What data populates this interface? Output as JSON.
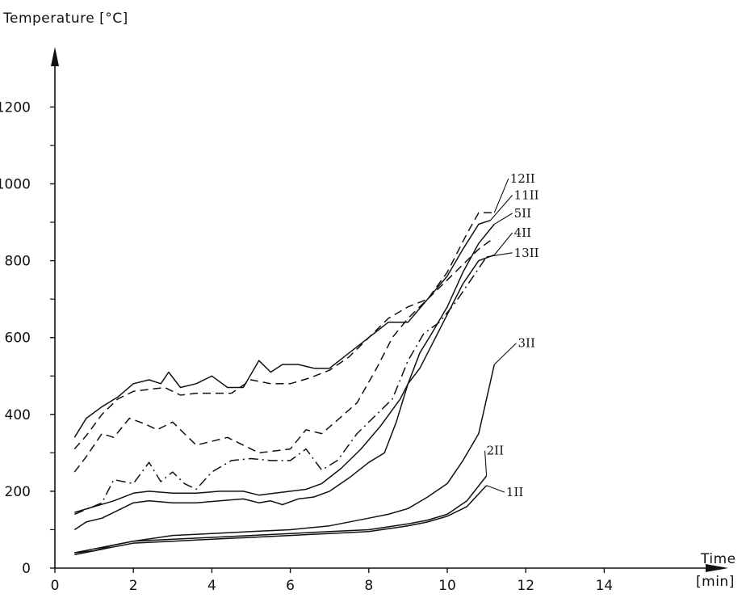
{
  "chart_data": {
    "type": "line",
    "ylabel": "Temperature [°C]",
    "xlabel": "Time",
    "xunit": "[min]",
    "xlim": [
      0,
      16
    ],
    "ylim": [
      0,
      1300
    ],
    "xticks": [
      0,
      2,
      4,
      6,
      8,
      10,
      12,
      14
    ],
    "yticks": [
      0,
      200,
      400,
      600,
      800,
      1000,
      1200
    ],
    "yminor": [
      100,
      300,
      500,
      700,
      900,
      1100
    ],
    "grid": false,
    "legend": "none",
    "series": [
      {
        "name": "12II",
        "dash": "long",
        "label_at": [
          11.6,
          1003
        ],
        "points": [
          [
            0.5,
            310
          ],
          [
            0.8,
            345
          ],
          [
            1.2,
            400
          ],
          [
            1.6,
            440
          ],
          [
            2.0,
            460
          ],
          [
            2.4,
            465
          ],
          [
            2.8,
            470
          ],
          [
            3.2,
            450
          ],
          [
            3.6,
            455
          ],
          [
            4.0,
            455
          ],
          [
            4.5,
            455
          ],
          [
            5.0,
            490
          ],
          [
            5.5,
            480
          ],
          [
            6.0,
            480
          ],
          [
            6.5,
            495
          ],
          [
            7.0,
            515
          ],
          [
            7.5,
            550
          ],
          [
            8.0,
            600
          ],
          [
            8.5,
            650
          ],
          [
            9.0,
            680
          ],
          [
            9.5,
            700
          ],
          [
            10.0,
            770
          ],
          [
            10.5,
            870
          ],
          [
            10.8,
            925
          ],
          [
            11.2,
            925
          ]
        ]
      },
      {
        "name": "11II",
        "dash": "solid",
        "label_at": [
          11.7,
          960
        ],
        "points": [
          [
            0.5,
            340
          ],
          [
            0.8,
            390
          ],
          [
            1.2,
            420
          ],
          [
            1.6,
            445
          ],
          [
            2.0,
            480
          ],
          [
            2.4,
            490
          ],
          [
            2.7,
            480
          ],
          [
            2.9,
            510
          ],
          [
            3.2,
            470
          ],
          [
            3.6,
            480
          ],
          [
            4.0,
            500
          ],
          [
            4.4,
            470
          ],
          [
            4.8,
            470
          ],
          [
            5.2,
            540
          ],
          [
            5.5,
            510
          ],
          [
            5.8,
            530
          ],
          [
            6.2,
            530
          ],
          [
            6.6,
            520
          ],
          [
            7.0,
            520
          ],
          [
            7.5,
            560
          ],
          [
            8.0,
            600
          ],
          [
            8.5,
            640
          ],
          [
            9.0,
            640
          ],
          [
            9.5,
            700
          ],
          [
            10.0,
            760
          ],
          [
            10.4,
            830
          ],
          [
            10.8,
            895
          ],
          [
            11.1,
            905
          ]
        ]
      },
      {
        "name": "5II",
        "dash": "solid",
        "label_at": [
          11.7,
          913
        ],
        "points": [
          [
            0.5,
            145
          ],
          [
            1.0,
            160
          ],
          [
            1.5,
            175
          ],
          [
            2.0,
            195
          ],
          [
            2.4,
            200
          ],
          [
            3.0,
            195
          ],
          [
            3.6,
            195
          ],
          [
            4.2,
            200
          ],
          [
            4.8,
            200
          ],
          [
            5.2,
            190
          ],
          [
            5.6,
            195
          ],
          [
            6.0,
            200
          ],
          [
            6.4,
            205
          ],
          [
            6.8,
            220
          ],
          [
            7.3,
            260
          ],
          [
            7.8,
            310
          ],
          [
            8.3,
            370
          ],
          [
            8.8,
            440
          ],
          [
            9.0,
            480
          ],
          [
            9.3,
            560
          ],
          [
            9.6,
            610
          ],
          [
            10.0,
            680
          ],
          [
            10.4,
            770
          ],
          [
            10.8,
            845
          ],
          [
            11.2,
            895
          ]
        ]
      },
      {
        "name": "4II",
        "dash": "solid",
        "label_at": [
          11.7,
          862
        ],
        "points": [
          [
            0.5,
            100
          ],
          [
            0.8,
            120
          ],
          [
            1.2,
            130
          ],
          [
            1.6,
            150
          ],
          [
            2.0,
            170
          ],
          [
            2.4,
            175
          ],
          [
            3.0,
            170
          ],
          [
            3.6,
            170
          ],
          [
            4.2,
            175
          ],
          [
            4.8,
            180
          ],
          [
            5.2,
            170
          ],
          [
            5.5,
            175
          ],
          [
            5.8,
            165
          ],
          [
            6.2,
            180
          ],
          [
            6.6,
            185
          ],
          [
            7.0,
            200
          ],
          [
            7.5,
            235
          ],
          [
            8.0,
            275
          ],
          [
            8.4,
            300
          ],
          [
            8.7,
            380
          ],
          [
            9.0,
            480
          ],
          [
            9.3,
            520
          ],
          [
            9.6,
            580
          ],
          [
            10.0,
            660
          ],
          [
            10.4,
            740
          ],
          [
            10.8,
            800
          ],
          [
            11.2,
            815
          ]
        ]
      },
      {
        "name": "13II",
        "dash": "dashdot",
        "label_at": [
          11.7,
          810
        ],
        "points": [
          [
            0.5,
            140
          ],
          [
            1.2,
            170
          ],
          [
            1.5,
            230
          ],
          [
            2.0,
            220
          ],
          [
            2.4,
            275
          ],
          [
            2.7,
            225
          ],
          [
            3.0,
            250
          ],
          [
            3.3,
            220
          ],
          [
            3.6,
            205
          ],
          [
            4.0,
            250
          ],
          [
            4.5,
            280
          ],
          [
            5.0,
            285
          ],
          [
            5.5,
            280
          ],
          [
            6.0,
            280
          ],
          [
            6.4,
            310
          ],
          [
            6.8,
            255
          ],
          [
            7.2,
            280
          ],
          [
            7.7,
            350
          ],
          [
            8.2,
            400
          ],
          [
            8.6,
            440
          ],
          [
            9.0,
            540
          ],
          [
            9.4,
            610
          ],
          [
            9.8,
            640
          ],
          [
            10.2,
            690
          ],
          [
            10.6,
            750
          ],
          [
            11.0,
            810
          ]
        ]
      },
      {
        "name": "3II",
        "dash": "solid",
        "label_at": [
          11.8,
          575
        ],
        "points": [
          [
            0.5,
            40
          ],
          [
            1.0,
            45
          ],
          [
            1.5,
            60
          ],
          [
            2.0,
            70
          ],
          [
            3.0,
            85
          ],
          [
            4.0,
            90
          ],
          [
            5.0,
            95
          ],
          [
            6.0,
            100
          ],
          [
            7.0,
            110
          ],
          [
            8.0,
            130
          ],
          [
            8.5,
            140
          ],
          [
            9.0,
            155
          ],
          [
            9.5,
            185
          ],
          [
            10.0,
            220
          ],
          [
            10.4,
            280
          ],
          [
            10.8,
            350
          ],
          [
            11.0,
            440
          ],
          [
            11.2,
            530
          ]
        ]
      },
      {
        "name": "2II",
        "dash": "solid",
        "label_at": [
          11.0,
          295
        ],
        "points": [
          [
            0.5,
            40
          ],
          [
            1.0,
            50
          ],
          [
            1.5,
            60
          ],
          [
            2.0,
            70
          ],
          [
            3.0,
            75
          ],
          [
            4.0,
            80
          ],
          [
            5.0,
            85
          ],
          [
            6.0,
            90
          ],
          [
            7.0,
            95
          ],
          [
            8.0,
            100
          ],
          [
            9.0,
            115
          ],
          [
            9.5,
            125
          ],
          [
            10.0,
            140
          ],
          [
            10.5,
            175
          ],
          [
            11.0,
            240
          ]
        ]
      },
      {
        "name": "1II",
        "dash": "solid",
        "label_at": [
          11.5,
          187
        ],
        "points": [
          [
            0.5,
            35
          ],
          [
            1.0,
            45
          ],
          [
            1.5,
            55
          ],
          [
            2.0,
            65
          ],
          [
            3.0,
            70
          ],
          [
            4.0,
            75
          ],
          [
            5.0,
            80
          ],
          [
            6.0,
            85
          ],
          [
            7.0,
            90
          ],
          [
            8.0,
            95
          ],
          [
            9.0,
            110
          ],
          [
            9.5,
            120
          ],
          [
            10.0,
            135
          ],
          [
            10.5,
            160
          ],
          [
            11.0,
            215
          ]
        ]
      },
      {
        "name": "",
        "dash": "long",
        "label_at": null,
        "points": [
          [
            0.5,
            250
          ],
          [
            0.8,
            290
          ],
          [
            1.2,
            350
          ],
          [
            1.5,
            340
          ],
          [
            1.9,
            390
          ],
          [
            2.3,
            375
          ],
          [
            2.6,
            360
          ],
          [
            3.0,
            380
          ],
          [
            3.3,
            350
          ],
          [
            3.6,
            320
          ],
          [
            4.0,
            330
          ],
          [
            4.4,
            340
          ],
          [
            4.8,
            320
          ],
          [
            5.2,
            300
          ],
          [
            5.6,
            305
          ],
          [
            6.0,
            310
          ],
          [
            6.4,
            360
          ],
          [
            6.8,
            350
          ],
          [
            7.2,
            385
          ],
          [
            7.7,
            430
          ],
          [
            8.2,
            520
          ],
          [
            8.6,
            600
          ],
          [
            9.0,
            650
          ],
          [
            9.4,
            690
          ],
          [
            9.8,
            730
          ],
          [
            10.3,
            780
          ],
          [
            10.8,
            830
          ],
          [
            11.2,
            860
          ]
        ]
      }
    ]
  }
}
